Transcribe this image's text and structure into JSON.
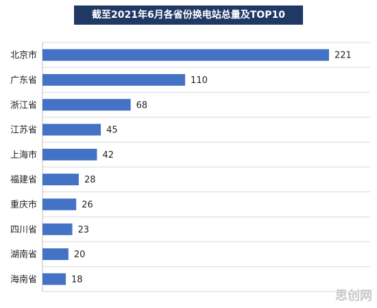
{
  "chart_data": {
    "type": "bar",
    "orientation": "horizontal",
    "title": "截至2021年6月各省份换电站总量及TOP10",
    "categories": [
      "北京市",
      "广东省",
      "浙江省",
      "江苏省",
      "上海市",
      "福建省",
      "重庆市",
      "四川省",
      "湖南省",
      "海南省"
    ],
    "values": [
      221,
      110,
      68,
      45,
      42,
      28,
      26,
      23,
      20,
      18
    ],
    "color": "#4472c4",
    "grid": true,
    "watermark": "思创网"
  }
}
